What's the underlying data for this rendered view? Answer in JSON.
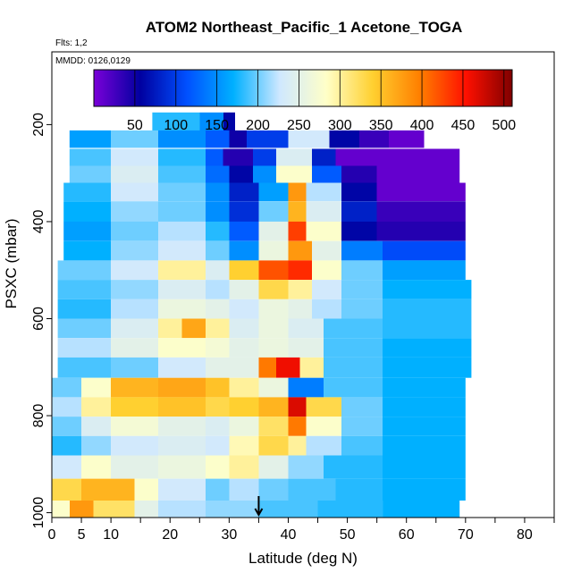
{
  "chart_data": {
    "type": "heatmap",
    "title": "ATOM2 Northeast_Pacific_1 Acetone_TOGA",
    "flights_label": "Flts: 1,2",
    "dates_label": "MMDD: 0126,0129",
    "xlabel": "Latitude (deg N)",
    "ylabel": "PSXC (mbar)",
    "xlim": [
      0,
      85
    ],
    "ylim": [
      1010,
      50
    ],
    "y_reversed": true,
    "x_ticks": [
      0,
      5,
      10,
      20,
      30,
      40,
      50,
      60,
      70,
      80
    ],
    "x_minor_ticks": [
      15,
      25,
      35,
      45,
      55,
      65,
      75,
      85
    ],
    "y_ticks": [
      200,
      400,
      600,
      800,
      1000
    ],
    "colorbar": {
      "range": [
        0,
        510
      ],
      "tick_values": [
        50,
        100,
        150,
        200,
        250,
        300,
        350,
        400,
        450,
        500
      ],
      "colors": [
        "#7a00d8",
        "#0000a0",
        "#0050ff",
        "#00b0ff",
        "#cfe8ff",
        "#ffffc8",
        "#ffd030",
        "#ff8000",
        "#ff1000",
        "#800000"
      ]
    },
    "marker_latitude": 35,
    "pressure_bands": [
      {
        "p_top": 175,
        "p_bottom": 215,
        "x_start": 17,
        "x_end": 31,
        "segments": [
          [
            17,
            25,
            180
          ],
          [
            25,
            29,
            150
          ],
          [
            29,
            31,
            60
          ]
        ]
      },
      {
        "p_top": 212,
        "p_bottom": 248,
        "x_start": 3,
        "x_end": 63,
        "segments": [
          [
            3,
            10,
            160
          ],
          [
            10,
            18,
            200
          ],
          [
            18,
            26,
            150
          ],
          [
            26,
            30,
            120
          ],
          [
            30,
            33,
            50
          ],
          [
            33,
            40,
            100
          ],
          [
            40,
            47,
            230
          ],
          [
            47,
            52,
            60
          ],
          [
            52,
            57,
            30
          ],
          [
            57,
            63,
            10
          ]
        ]
      },
      {
        "p_top": 250,
        "p_bottom": 285,
        "x_start": 3,
        "x_end": 69,
        "segments": [
          [
            3,
            10,
            190
          ],
          [
            10,
            18,
            230
          ],
          [
            18,
            26,
            180
          ],
          [
            26,
            29,
            120
          ],
          [
            29,
            34,
            40
          ],
          [
            34,
            38,
            100
          ],
          [
            38,
            44,
            240
          ],
          [
            44,
            48,
            80
          ],
          [
            48,
            69,
            10
          ]
        ]
      },
      {
        "p_top": 285,
        "p_bottom": 320,
        "x_start": 3,
        "x_end": 69,
        "segments": [
          [
            3,
            10,
            200
          ],
          [
            10,
            18,
            240
          ],
          [
            18,
            26,
            190
          ],
          [
            26,
            30,
            130
          ],
          [
            30,
            34,
            60
          ],
          [
            34,
            38,
            150
          ],
          [
            38,
            44,
            280
          ],
          [
            44,
            49,
            120
          ],
          [
            49,
            55,
            40
          ],
          [
            55,
            69,
            10
          ]
        ]
      },
      {
        "p_top": 320,
        "p_bottom": 358,
        "x_start": 2,
        "x_end": 70,
        "segments": [
          [
            2,
            10,
            180
          ],
          [
            10,
            18,
            230
          ],
          [
            18,
            26,
            200
          ],
          [
            26,
            30,
            150
          ],
          [
            30,
            35,
            80
          ],
          [
            35,
            40,
            160
          ],
          [
            40,
            43,
            380
          ],
          [
            43,
            49,
            220
          ],
          [
            49,
            55,
            60
          ],
          [
            55,
            70,
            10
          ]
        ]
      },
      {
        "p_top": 358,
        "p_bottom": 400,
        "x_start": 2,
        "x_end": 70,
        "segments": [
          [
            2,
            10,
            170
          ],
          [
            10,
            18,
            210
          ],
          [
            18,
            26,
            200
          ],
          [
            26,
            30,
            150
          ],
          [
            30,
            35,
            90
          ],
          [
            35,
            40,
            200
          ],
          [
            40,
            43,
            360
          ],
          [
            43,
            49,
            240
          ],
          [
            49,
            55,
            80
          ],
          [
            55,
            70,
            30
          ]
        ]
      },
      {
        "p_top": 400,
        "p_bottom": 440,
        "x_start": 2,
        "x_end": 70,
        "segments": [
          [
            2,
            10,
            160
          ],
          [
            10,
            18,
            200
          ],
          [
            18,
            26,
            220
          ],
          [
            26,
            30,
            180
          ],
          [
            30,
            35,
            120
          ],
          [
            35,
            40,
            250
          ],
          [
            40,
            43,
            430
          ],
          [
            43,
            49,
            280
          ],
          [
            49,
            55,
            60
          ],
          [
            55,
            70,
            40
          ]
        ]
      },
      {
        "p_top": 440,
        "p_bottom": 480,
        "x_start": 2,
        "x_end": 70,
        "segments": [
          [
            2,
            10,
            170
          ],
          [
            10,
            18,
            210
          ],
          [
            18,
            26,
            230
          ],
          [
            26,
            30,
            200
          ],
          [
            30,
            35,
            150
          ],
          [
            35,
            40,
            260
          ],
          [
            40,
            44,
            380
          ],
          [
            44,
            49,
            250
          ],
          [
            49,
            56,
            140
          ],
          [
            56,
            70,
            110
          ]
        ]
      },
      {
        "p_top": 480,
        "p_bottom": 520,
        "x_start": 1,
        "x_end": 70,
        "segments": [
          [
            1,
            10,
            200
          ],
          [
            10,
            18,
            230
          ],
          [
            18,
            26,
            300
          ],
          [
            26,
            30,
            240
          ],
          [
            30,
            35,
            340
          ],
          [
            35,
            40,
            420
          ],
          [
            40,
            44,
            440
          ],
          [
            44,
            49,
            280
          ],
          [
            49,
            56,
            200
          ],
          [
            56,
            70,
            160
          ]
        ]
      },
      {
        "p_top": 520,
        "p_bottom": 560,
        "x_start": 1,
        "x_end": 71,
        "segments": [
          [
            1,
            10,
            190
          ],
          [
            10,
            18,
            210
          ],
          [
            18,
            26,
            240
          ],
          [
            26,
            30,
            220
          ],
          [
            30,
            35,
            250
          ],
          [
            35,
            40,
            330
          ],
          [
            40,
            44,
            300
          ],
          [
            44,
            49,
            230
          ],
          [
            49,
            56,
            200
          ],
          [
            56,
            71,
            170
          ]
        ]
      },
      {
        "p_top": 560,
        "p_bottom": 600,
        "x_start": 1,
        "x_end": 71,
        "segments": [
          [
            1,
            10,
            180
          ],
          [
            10,
            18,
            220
          ],
          [
            18,
            26,
            260
          ],
          [
            26,
            30,
            250
          ],
          [
            30,
            35,
            230
          ],
          [
            35,
            40,
            260
          ],
          [
            40,
            44,
            250
          ],
          [
            44,
            49,
            220
          ],
          [
            49,
            56,
            200
          ],
          [
            56,
            71,
            180
          ]
        ]
      },
      {
        "p_top": 600,
        "p_bottom": 640,
        "x_start": 1,
        "x_end": 71,
        "segments": [
          [
            1,
            10,
            200
          ],
          [
            10,
            18,
            240
          ],
          [
            18,
            22,
            300
          ],
          [
            22,
            26,
            370
          ],
          [
            26,
            30,
            300
          ],
          [
            30,
            35,
            240
          ],
          [
            35,
            40,
            260
          ],
          [
            40,
            46,
            240
          ],
          [
            46,
            56,
            190
          ],
          [
            56,
            71,
            180
          ]
        ]
      },
      {
        "p_top": 640,
        "p_bottom": 680,
        "x_start": 1,
        "x_end": 71,
        "segments": [
          [
            1,
            10,
            220
          ],
          [
            10,
            18,
            250
          ],
          [
            18,
            26,
            280
          ],
          [
            26,
            30,
            270
          ],
          [
            30,
            35,
            250
          ],
          [
            35,
            40,
            260
          ],
          [
            40,
            46,
            250
          ],
          [
            46,
            56,
            190
          ],
          [
            56,
            71,
            170
          ]
        ]
      },
      {
        "p_top": 680,
        "p_bottom": 722,
        "x_start": 1,
        "x_end": 71,
        "segments": [
          [
            1,
            10,
            190
          ],
          [
            10,
            18,
            200
          ],
          [
            18,
            26,
            230
          ],
          [
            26,
            30,
            250
          ],
          [
            30,
            35,
            250
          ],
          [
            35,
            38,
            400
          ],
          [
            38,
            42,
            460
          ],
          [
            42,
            46,
            300
          ],
          [
            46,
            56,
            190
          ],
          [
            56,
            71,
            170
          ]
        ]
      },
      {
        "p_top": 722,
        "p_bottom": 762,
        "x_start": 0,
        "x_end": 70,
        "segments": [
          [
            0,
            5,
            200
          ],
          [
            5,
            10,
            280
          ],
          [
            10,
            18,
            360
          ],
          [
            18,
            26,
            370
          ],
          [
            26,
            30,
            350
          ],
          [
            30,
            35,
            300
          ],
          [
            35,
            40,
            260
          ],
          [
            40,
            46,
            140
          ],
          [
            46,
            56,
            190
          ],
          [
            56,
            70,
            170
          ]
        ]
      },
      {
        "p_top": 762,
        "p_bottom": 802,
        "x_start": 0,
        "x_end": 70,
        "segments": [
          [
            0,
            5,
            220
          ],
          [
            5,
            10,
            300
          ],
          [
            10,
            18,
            340
          ],
          [
            18,
            26,
            350
          ],
          [
            26,
            30,
            330
          ],
          [
            30,
            35,
            340
          ],
          [
            35,
            40,
            360
          ],
          [
            40,
            43,
            470
          ],
          [
            43,
            49,
            330
          ],
          [
            49,
            56,
            200
          ],
          [
            56,
            70,
            170
          ]
        ]
      },
      {
        "p_top": 802,
        "p_bottom": 842,
        "x_start": 0,
        "x_end": 70,
        "segments": [
          [
            0,
            5,
            200
          ],
          [
            5,
            10,
            240
          ],
          [
            10,
            18,
            270
          ],
          [
            18,
            26,
            250
          ],
          [
            26,
            30,
            240
          ],
          [
            30,
            35,
            260
          ],
          [
            35,
            40,
            320
          ],
          [
            40,
            43,
            400
          ],
          [
            43,
            49,
            280
          ],
          [
            49,
            56,
            200
          ],
          [
            56,
            70,
            170
          ]
        ]
      },
      {
        "p_top": 842,
        "p_bottom": 882,
        "x_start": 0,
        "x_end": 70,
        "segments": [
          [
            0,
            5,
            180
          ],
          [
            5,
            10,
            210
          ],
          [
            10,
            18,
            230
          ],
          [
            18,
            26,
            240
          ],
          [
            26,
            30,
            230
          ],
          [
            30,
            35,
            290
          ],
          [
            35,
            40,
            330
          ],
          [
            40,
            43,
            300
          ],
          [
            43,
            49,
            220
          ],
          [
            49,
            56,
            190
          ],
          [
            56,
            70,
            170
          ]
        ]
      },
      {
        "p_top": 882,
        "p_bottom": 930,
        "x_start": 0,
        "x_end": 70,
        "segments": [
          [
            0,
            5,
            230
          ],
          [
            5,
            10,
            280
          ],
          [
            10,
            18,
            250
          ],
          [
            18,
            26,
            260
          ],
          [
            26,
            30,
            280
          ],
          [
            30,
            35,
            300
          ],
          [
            35,
            40,
            250
          ],
          [
            40,
            46,
            210
          ],
          [
            46,
            56,
            180
          ],
          [
            56,
            70,
            170
          ]
        ]
      },
      {
        "p_top": 930,
        "p_bottom": 975,
        "x_start": 0,
        "x_end": 70,
        "segments": [
          [
            0,
            5,
            330
          ],
          [
            5,
            14,
            360
          ],
          [
            14,
            18,
            280
          ],
          [
            18,
            26,
            230
          ],
          [
            26,
            30,
            200
          ],
          [
            30,
            35,
            220
          ],
          [
            35,
            40,
            200
          ],
          [
            40,
            48,
            190
          ],
          [
            48,
            56,
            180
          ],
          [
            56,
            70,
            170
          ]
        ]
      },
      {
        "p_top": 975,
        "p_bottom": 1010,
        "x_start": 0,
        "x_end": 69,
        "segments": [
          [
            0,
            3,
            280
          ],
          [
            3,
            7,
            380
          ],
          [
            7,
            14,
            320
          ],
          [
            14,
            18,
            250
          ],
          [
            18,
            26,
            220
          ],
          [
            26,
            35,
            210
          ],
          [
            35,
            45,
            190
          ],
          [
            45,
            56,
            180
          ],
          [
            56,
            69,
            170
          ]
        ]
      }
    ]
  }
}
